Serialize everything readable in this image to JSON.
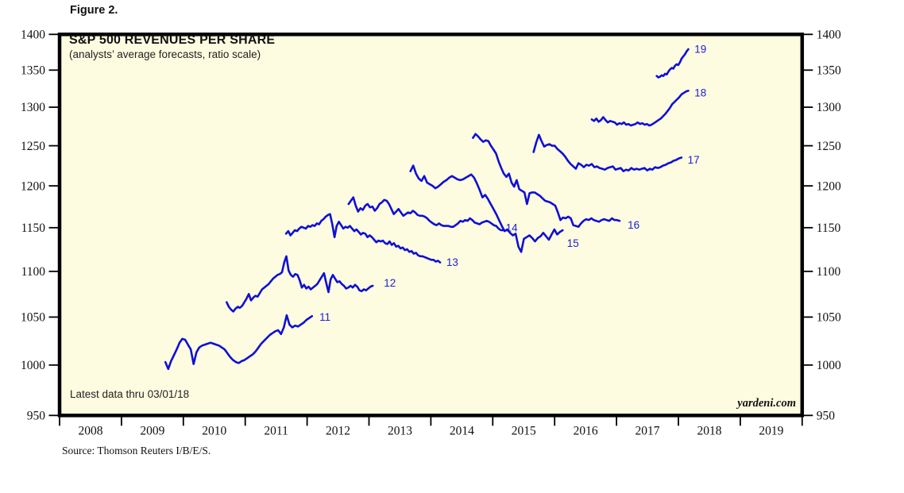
{
  "figure_label": "Figure 2.",
  "chart": {
    "title": "S&P 500 REVENUES PER SHARE",
    "subtitle": "(analysts’ average forecasts, ratio scale)",
    "annotation": "Latest data thru 03/01/18",
    "watermark": "yardeni.com",
    "source": "Source: Thomson Reuters I/B/E/S.",
    "colors": {
      "line": "#0f0fd6",
      "series_label": "#2020d8",
      "plot_background": "#fdfce0",
      "border": "#000000",
      "tick_text": "#111111"
    }
  },
  "chart_data": {
    "type": "line",
    "title": "S&P 500 REVENUES PER SHARE",
    "subtitle": "(analysts' average forecasts, ratio scale)",
    "y_scale": "log",
    "ylim": [
      950,
      1400
    ],
    "xlim": [
      2008,
      2020
    ],
    "grid": false,
    "legend_position": "inline-end-of-line-labels",
    "y_ticks": [
      950,
      1000,
      1050,
      1100,
      1150,
      1200,
      1250,
      1300,
      1350,
      1400
    ],
    "x_boundary_ticks": [
      2008,
      2009,
      2010,
      2011,
      2012,
      2013,
      2014,
      2015,
      2016,
      2017,
      2018,
      2019,
      2020
    ],
    "x_year_labels": [
      "2008",
      "2009",
      "2010",
      "2011",
      "2012",
      "2013",
      "2014",
      "2015",
      "2016",
      "2017",
      "2018",
      "2019"
    ],
    "series": [
      {
        "label": "11",
        "t0": 2009.71,
        "t1": 2012.08,
        "label_t": 2012.2,
        "label_v": 1050,
        "values": [
          1003,
          996,
          1004,
          1010,
          1016,
          1023,
          1027,
          1026,
          1021,
          1016,
          1001,
          1013,
          1018,
          1020,
          1021,
          1022,
          1023,
          1022,
          1021,
          1020,
          1018,
          1016,
          1012,
          1008,
          1005,
          1003,
          1002,
          1004,
          1005,
          1007,
          1009,
          1011,
          1014,
          1018,
          1022,
          1025,
          1028,
          1031,
          1033,
          1035,
          1036,
          1032,
          1039,
          1052,
          1042,
          1039,
          1041,
          1040,
          1042,
          1044,
          1047,
          1049,
          1051
        ]
      },
      {
        "label": "12",
        "t0": 2010.7,
        "t1": 2013.06,
        "label_t": 2013.24,
        "label_v": 1087,
        "values": [
          1066,
          1061,
          1058,
          1056,
          1059,
          1061,
          1060,
          1062,
          1066,
          1070,
          1075,
          1068,
          1071,
          1073,
          1072,
          1076,
          1080,
          1082,
          1084,
          1086,
          1089,
          1092,
          1094,
          1096,
          1097,
          1099,
          1110,
          1117,
          1101,
          1096,
          1094,
          1097,
          1096,
          1090,
          1082,
          1085,
          1081,
          1083,
          1080,
          1082,
          1084,
          1086,
          1090,
          1094,
          1098,
          1087,
          1077,
          1091,
          1096,
          1092,
          1088,
          1089,
          1086,
          1084,
          1081,
          1082,
          1084,
          1082,
          1085,
          1083,
          1079,
          1078,
          1080,
          1079,
          1081,
          1083,
          1084
        ]
      },
      {
        "label": "13",
        "t0": 2011.66,
        "t1": 2014.15,
        "label_t": 2014.25,
        "label_v": 1110,
        "values": [
          1143,
          1146,
          1141,
          1144,
          1147,
          1146,
          1149,
          1151,
          1150,
          1149,
          1152,
          1151,
          1153,
          1152,
          1155,
          1154,
          1158,
          1160,
          1163,
          1165,
          1166,
          1154,
          1139,
          1152,
          1157,
          1153,
          1149,
          1151,
          1150,
          1152,
          1149,
          1146,
          1148,
          1145,
          1142,
          1144,
          1143,
          1139,
          1141,
          1139,
          1136,
          1133,
          1135,
          1134,
          1135,
          1132,
          1131,
          1134,
          1130,
          1132,
          1128,
          1129,
          1126,
          1127,
          1124,
          1125,
          1122,
          1123,
          1120,
          1121,
          1118,
          1117,
          1117,
          1116,
          1115,
          1114,
          1113,
          1113,
          1111,
          1112,
          1110
        ]
      },
      {
        "label": "14",
        "t0": 2012.67,
        "t1": 2015.17,
        "label_t": 2015.21,
        "label_v": 1150,
        "values": [
          1178,
          1182,
          1186,
          1176,
          1169,
          1173,
          1171,
          1176,
          1178,
          1174,
          1175,
          1170,
          1173,
          1178,
          1180,
          1183,
          1182,
          1178,
          1172,
          1166,
          1169,
          1172,
          1168,
          1164,
          1166,
          1168,
          1167,
          1170,
          1168,
          1165,
          1164,
          1164,
          1163,
          1161,
          1158,
          1156,
          1154,
          1153,
          1155,
          1153,
          1152,
          1152,
          1152,
          1151,
          1151,
          1153,
          1155,
          1158,
          1157,
          1159,
          1158,
          1161,
          1159,
          1156,
          1155,
          1154,
          1156,
          1157,
          1158,
          1157,
          1155,
          1153,
          1152,
          1149,
          1147,
          1147
        ]
      },
      {
        "label": "15",
        "t0": 2013.67,
        "t1": 2016.13,
        "label_t": 2016.2,
        "label_v": 1132,
        "values": [
          1218,
          1225,
          1215,
          1209,
          1206,
          1212,
          1204,
          1202,
          1200,
          1197,
          1199,
          1202,
          1205,
          1207,
          1210,
          1212,
          1210,
          1208,
          1207,
          1208,
          1210,
          1212,
          1214,
          1210,
          1203,
          1195,
          1186,
          1189,
          1184,
          1178,
          1172,
          1166,
          1159,
          1152,
          1146,
          1148,
          1144,
          1141,
          1143,
          1128,
          1122,
          1137,
          1139,
          1141,
          1138,
          1134,
          1138,
          1140,
          1144,
          1140,
          1136,
          1142,
          1148,
          1142,
          1145,
          1147
        ]
      },
      {
        "label": "16",
        "t0": 2014.68,
        "t1": 2017.05,
        "label_t": 2017.18,
        "label_v": 1153,
        "values": [
          1260,
          1265,
          1262,
          1258,
          1255,
          1257,
          1256,
          1250,
          1245,
          1240,
          1230,
          1222,
          1215,
          1211,
          1215,
          1204,
          1199,
          1207,
          1196,
          1194,
          1192,
          1178,
          1191,
          1192,
          1192,
          1190,
          1188,
          1185,
          1182,
          1181,
          1180,
          1178,
          1176,
          1168,
          1159,
          1162,
          1161,
          1163,
          1161,
          1153,
          1152,
          1151,
          1155,
          1158,
          1160,
          1159,
          1161,
          1159,
          1158,
          1157,
          1159,
          1160,
          1159,
          1158,
          1161,
          1159,
          1159,
          1158
        ]
      },
      {
        "label": "17",
        "t0": 2015.66,
        "t1": 2018.05,
        "label_t": 2018.15,
        "label_v": 1232,
        "values": [
          1242,
          1254,
          1264,
          1256,
          1249,
          1251,
          1252,
          1250,
          1250,
          1246,
          1243,
          1240,
          1236,
          1231,
          1227,
          1224,
          1221,
          1228,
          1226,
          1223,
          1226,
          1225,
          1227,
          1223,
          1224,
          1222,
          1221,
          1220,
          1222,
          1223,
          1224,
          1220,
          1221,
          1222,
          1218,
          1220,
          1219,
          1222,
          1220,
          1221,
          1220,
          1221,
          1222,
          1219,
          1221,
          1220,
          1223,
          1222,
          1223,
          1225,
          1226,
          1228,
          1229,
          1231,
          1232,
          1234,
          1235
        ]
      },
      {
        "label": "18",
        "t0": 2016.6,
        "t1": 2018.16,
        "label_t": 2018.26,
        "label_v": 1319,
        "values": [
          1284,
          1282,
          1285,
          1281,
          1283,
          1287,
          1283,
          1280,
          1282,
          1281,
          1280,
          1277,
          1279,
          1278,
          1280,
          1277,
          1278,
          1276,
          1277,
          1278,
          1280,
          1278,
          1279,
          1277,
          1278,
          1276,
          1277,
          1279,
          1281,
          1283,
          1285,
          1288,
          1291,
          1295,
          1299,
          1304,
          1307,
          1310,
          1313,
          1317,
          1319,
          1321,
          1322
        ]
      },
      {
        "label": "19",
        "t0": 2017.65,
        "t1": 2018.16,
        "label_t": 2018.26,
        "label_v": 1379,
        "values": [
          1342,
          1340,
          1341,
          1343,
          1342,
          1345,
          1344,
          1348,
          1351,
          1353,
          1352,
          1356,
          1358,
          1357,
          1361,
          1366,
          1369,
          1372,
          1376,
          1379
        ]
      }
    ]
  }
}
